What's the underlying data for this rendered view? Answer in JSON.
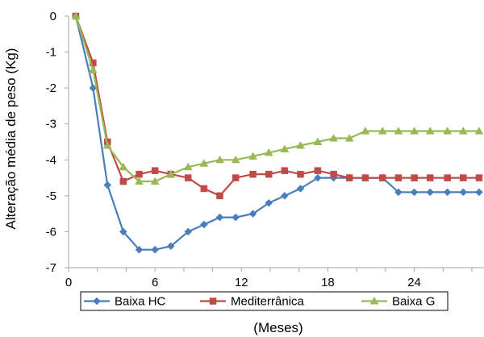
{
  "chart_data": {
    "type": "line",
    "title": "",
    "xlabel": "(Meses)",
    "ylabel": "Alteração média de peso (Kg)",
    "xlim": [
      0,
      28
    ],
    "ylim": [
      -7,
      0
    ],
    "x_ticks": [
      "0",
      "6",
      "12",
      "18",
      "24"
    ],
    "y_ticks": [
      "0",
      "-1",
      "-2",
      "-3",
      "-4",
      "-5",
      "-6",
      "-7"
    ],
    "grid": false,
    "legend_position": "bottom",
    "x": [
      0.5,
      1.7,
      2.7,
      3.8,
      4.9,
      6.0,
      7.1,
      8.3,
      9.4,
      10.5,
      11.6,
      12.8,
      13.9,
      15.0,
      16.1,
      17.3,
      18.4,
      19.5,
      20.6,
      21.8,
      22.9,
      24.0,
      25.1,
      26.3,
      27.4,
      28.5
    ],
    "series": [
      {
        "name": "Baixa HC",
        "color": "#4a7ebb",
        "marker": "diamond",
        "values": [
          0,
          -2.0,
          -4.7,
          -6.0,
          -6.5,
          -6.5,
          -6.4,
          -6.0,
          -5.8,
          -5.6,
          -5.6,
          -5.5,
          -5.2,
          -5.0,
          -4.8,
          -4.5,
          -4.5,
          -4.5,
          -4.5,
          -4.5,
          -4.9,
          -4.9,
          -4.9,
          -4.9,
          -4.9,
          -4.9
        ]
      },
      {
        "name": "Mediterrânica",
        "color": "#be4b48",
        "marker": "square",
        "values": [
          0,
          -1.3,
          -3.5,
          -4.6,
          -4.4,
          -4.3,
          -4.4,
          -4.5,
          -4.8,
          -5.0,
          -4.5,
          -4.4,
          -4.4,
          -4.3,
          -4.4,
          -4.3,
          -4.4,
          -4.5,
          -4.5,
          -4.5,
          -4.5,
          -4.5,
          -4.5,
          -4.5,
          -4.5,
          -4.5
        ]
      },
      {
        "name": "Baixa G",
        "color": "#98b954",
        "marker": "triangle",
        "values": [
          0,
          -1.5,
          -3.6,
          -4.2,
          -4.6,
          -4.6,
          -4.4,
          -4.2,
          -4.1,
          -4.0,
          -4.0,
          -3.9,
          -3.8,
          -3.7,
          -3.6,
          -3.5,
          -3.4,
          -3.4,
          -3.2,
          -3.2,
          -3.2,
          -3.2,
          -3.2,
          -3.2,
          -3.2,
          -3.2
        ]
      }
    ]
  }
}
